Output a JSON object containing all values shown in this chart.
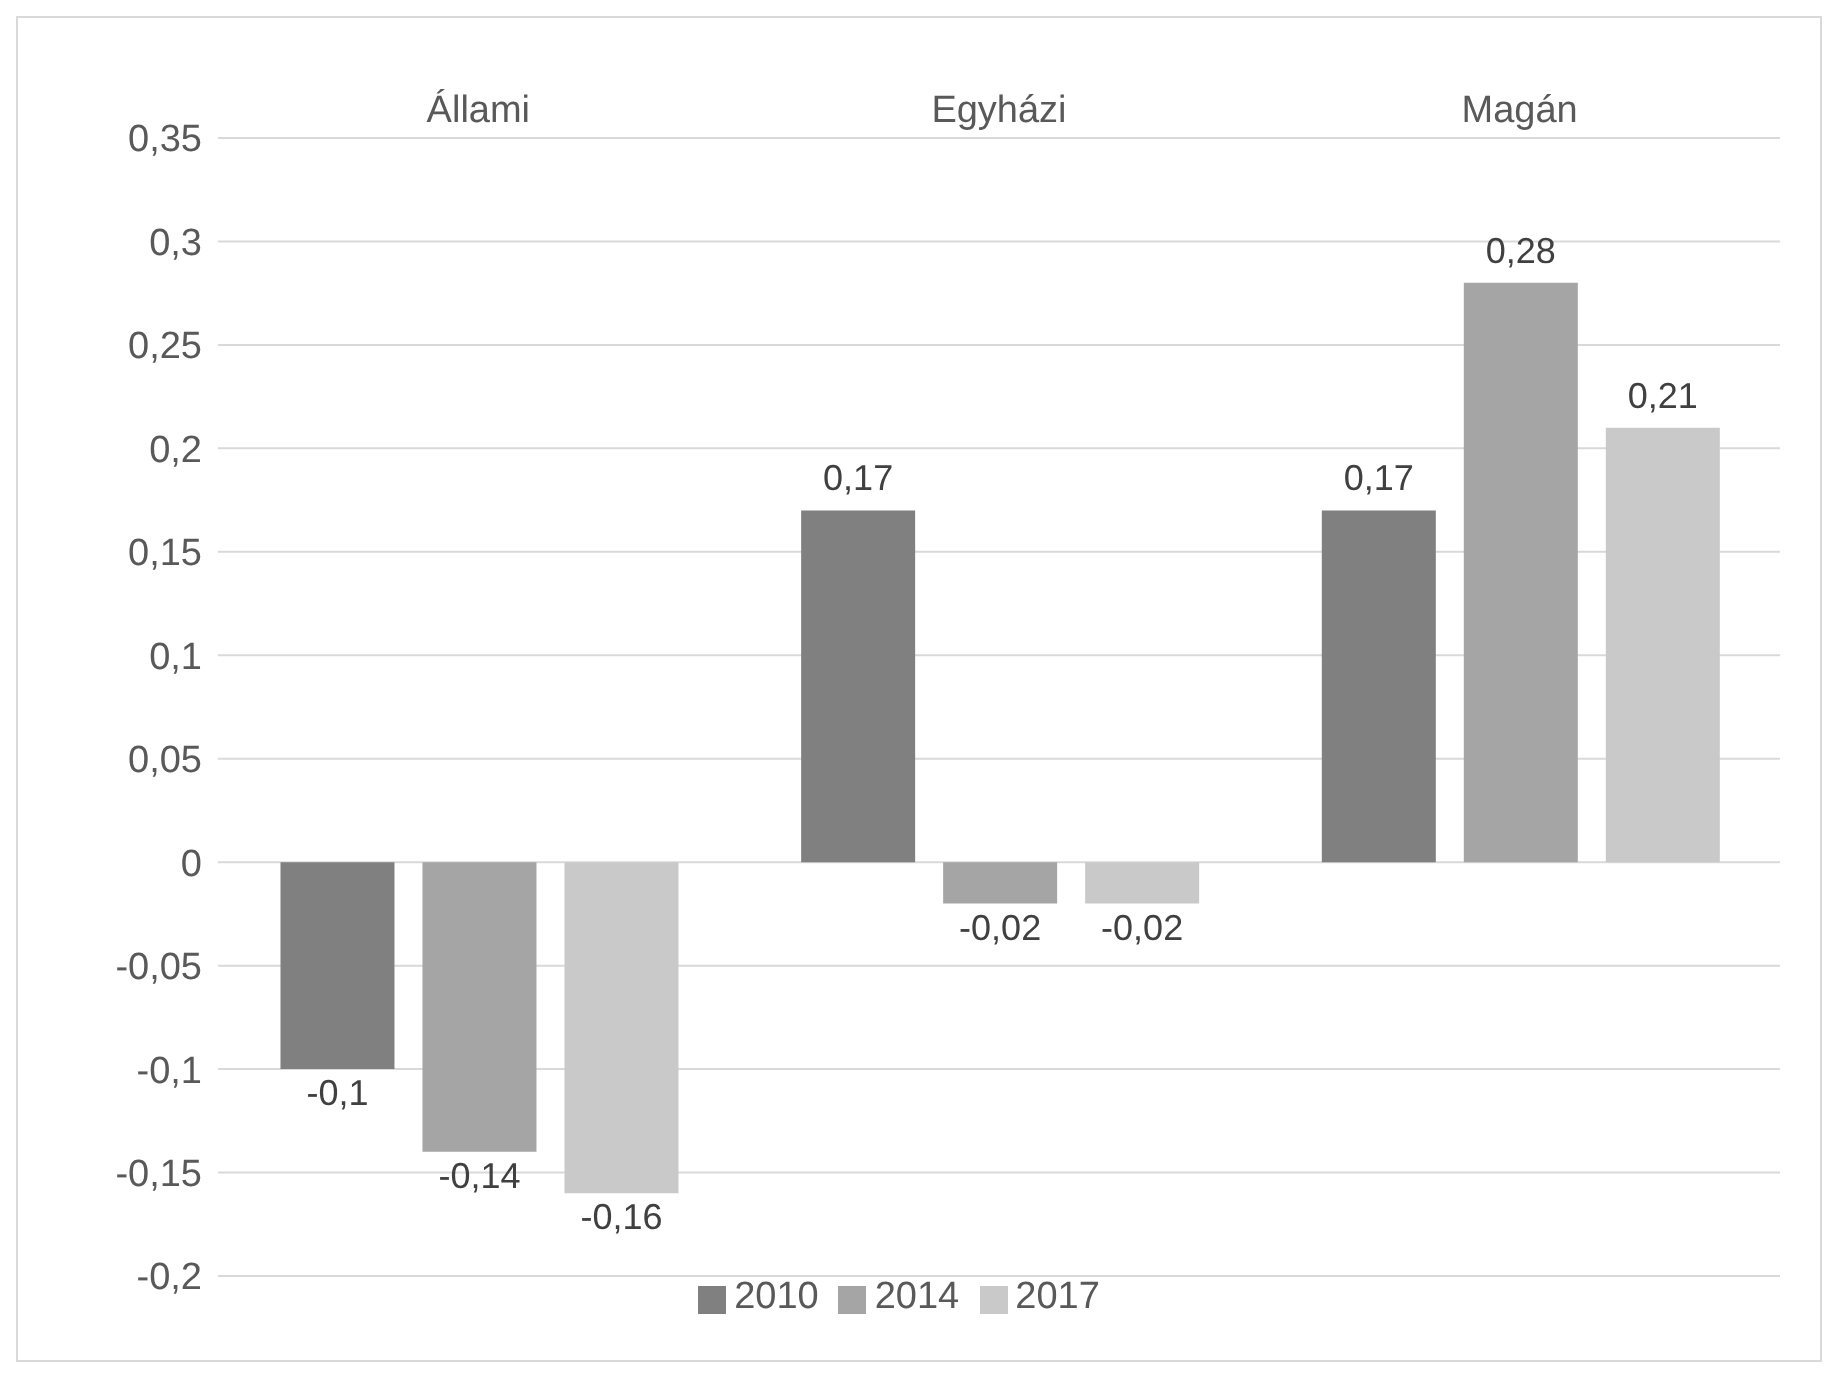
{
  "chart_data": {
    "type": "bar",
    "categories": [
      "Állami",
      "Egyházi",
      "Magán"
    ],
    "series": [
      {
        "name": "2010",
        "color": "#808080",
        "values": [
          -0.1,
          0.17,
          0.17
        ],
        "value_labels": [
          "-0,1",
          "0,17",
          "0,17"
        ]
      },
      {
        "name": "2014",
        "color": "#a5a5a5",
        "values": [
          -0.14,
          -0.02,
          0.28
        ],
        "value_labels": [
          "-0,14",
          "-0,02",
          "0,28"
        ]
      },
      {
        "name": "2017",
        "color": "#c9c9c9",
        "values": [
          -0.16,
          -0.02,
          0.21
        ],
        "value_labels": [
          "-0,16",
          "-0,02",
          "0,21"
        ]
      }
    ],
    "ylim": [
      -0.2,
      0.35
    ],
    "yticks": [
      {
        "value": -0.2,
        "label": "-0,2"
      },
      {
        "value": -0.15,
        "label": "-0,15"
      },
      {
        "value": -0.1,
        "label": "-0,1"
      },
      {
        "value": -0.05,
        "label": "-0,05"
      },
      {
        "value": 0,
        "label": "0"
      },
      {
        "value": 0.05,
        "label": "0,05"
      },
      {
        "value": 0.1,
        "label": "0,1"
      },
      {
        "value": 0.15,
        "label": "0,15"
      },
      {
        "value": 0.2,
        "label": "0,2"
      },
      {
        "value": 0.25,
        "label": "0,25"
      },
      {
        "value": 0.3,
        "label": "0,3"
      },
      {
        "value": 0.35,
        "label": "0,35"
      }
    ],
    "grid": "y",
    "legend": "bottom"
  }
}
